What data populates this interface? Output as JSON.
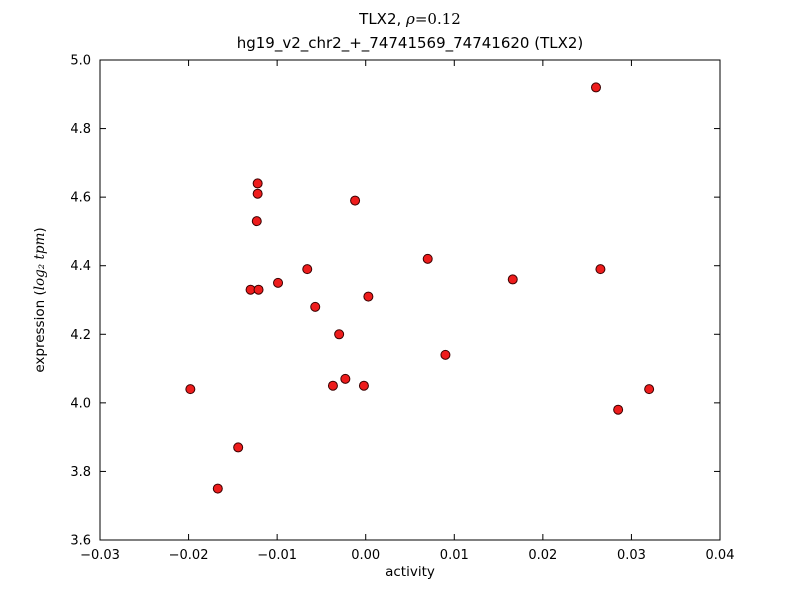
{
  "figure": {
    "background": "#ffffff",
    "text_color": "#000000",
    "axes_edge_color": "#000000"
  },
  "chart_data": {
    "type": "scatter",
    "title": "TLX2, ρ=0.12",
    "title_parts": {
      "prefix": "TLX2, ",
      "rho": "ρ",
      "value": "=0.12"
    },
    "subtitle": "hg19_v2_chr2_+_74741569_74741620 (TLX2)",
    "xlabel": "activity",
    "ylabel": "expression (log₂ tpm)",
    "ylabel_parts": {
      "prefix": "expression (",
      "math": "log₂ tpm",
      "suffix": ")"
    },
    "xlim": [
      -0.03,
      0.04
    ],
    "ylim": [
      3.6,
      5.0
    ],
    "grid": false,
    "legend_position": "none",
    "xticks": [
      {
        "value": -0.03,
        "label": "−0.03"
      },
      {
        "value": -0.02,
        "label": "−0.02"
      },
      {
        "value": -0.01,
        "label": "−0.01"
      },
      {
        "value": 0.0,
        "label": "0.00"
      },
      {
        "value": 0.01,
        "label": "0.01"
      },
      {
        "value": 0.02,
        "label": "0.02"
      },
      {
        "value": 0.03,
        "label": "0.03"
      },
      {
        "value": 0.04,
        "label": "0.04"
      }
    ],
    "yticks": [
      {
        "value": 3.6,
        "label": "3.6"
      },
      {
        "value": 3.8,
        "label": "3.8"
      },
      {
        "value": 4.0,
        "label": "4.0"
      },
      {
        "value": 4.2,
        "label": "4.2"
      },
      {
        "value": 4.4,
        "label": "4.4"
      },
      {
        "value": 4.6,
        "label": "4.6"
      },
      {
        "value": 4.8,
        "label": "4.8"
      },
      {
        "value": 5.0,
        "label": "5.0"
      }
    ],
    "marker": {
      "shape": "circle",
      "face_color": "#ee1c1c",
      "edge_color": "#3a0000",
      "radius_px": 4.5
    },
    "points": [
      [
        -0.0198,
        4.04
      ],
      [
        -0.0167,
        3.75
      ],
      [
        -0.0144,
        3.87
      ],
      [
        -0.013,
        4.33
      ],
      [
        -0.0121,
        4.33
      ],
      [
        -0.0122,
        4.64
      ],
      [
        -0.0122,
        4.61
      ],
      [
        -0.0123,
        4.53
      ],
      [
        -0.0099,
        4.35
      ],
      [
        -0.0066,
        4.39
      ],
      [
        -0.0057,
        4.28
      ],
      [
        -0.0037,
        4.05
      ],
      [
        -0.003,
        4.2
      ],
      [
        -0.0023,
        4.07
      ],
      [
        -0.0012,
        4.59
      ],
      [
        -0.0002,
        4.05
      ],
      [
        0.0003,
        4.31
      ],
      [
        0.007,
        4.42
      ],
      [
        0.009,
        4.14
      ],
      [
        0.0166,
        4.36
      ],
      [
        0.026,
        4.92
      ],
      [
        0.0265,
        4.39
      ],
      [
        0.0285,
        3.98
      ],
      [
        0.032,
        4.04
      ]
    ]
  }
}
